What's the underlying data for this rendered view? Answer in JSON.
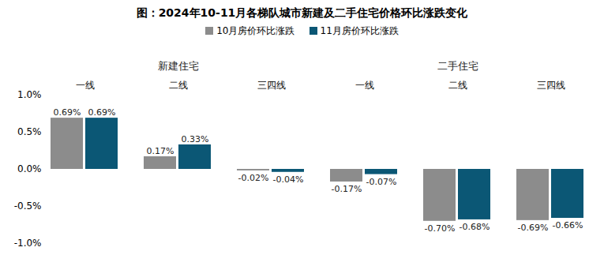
{
  "chart_data": {
    "type": "bar",
    "title": "图：2024年10-11月各梯队城市新建及二手住宅价格环比涨跌变化",
    "categories": [
      "一线",
      "二线",
      "三四线",
      "一线",
      "二线",
      "三四线"
    ],
    "category_groups": [
      {
        "label": "新建住宅",
        "size": 3
      },
      {
        "label": "二手住宅",
        "size": 3
      }
    ],
    "series": [
      {
        "name": "10月房价环比涨跌",
        "color": "#8c8c8c",
        "values": [
          0.69,
          0.17,
          -0.02,
          -0.17,
          -0.7,
          -0.69
        ],
        "value_labels": [
          "0.69%",
          "0.17%",
          "-0.02%",
          "-0.17%",
          "-0.70%",
          "-0.69%"
        ]
      },
      {
        "name": "11月房价环比涨跌",
        "color": "#0b5775",
        "values": [
          0.69,
          0.33,
          -0.04,
          -0.07,
          -0.68,
          -0.66
        ],
        "value_labels": [
          "0.69%",
          "0.33%",
          "-0.04%",
          "-0.07%",
          "-0.68%",
          "-0.66%"
        ]
      }
    ],
    "ylim": [
      -1.0,
      1.0
    ],
    "yticks": [
      {
        "value": 1.0,
        "label": "1.0%"
      },
      {
        "value": 0.5,
        "label": "0.5%"
      },
      {
        "value": 0.0,
        "label": "0.0%"
      },
      {
        "value": -0.5,
        "label": "-0.5%"
      },
      {
        "value": -1.0,
        "label": "-1.0%"
      }
    ],
    "legend": "top",
    "data_labels": true,
    "grid": false
  }
}
